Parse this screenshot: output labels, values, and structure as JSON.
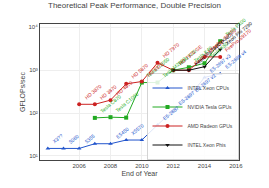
{
  "chart_data": {
    "type": "line",
    "title": "Theoretical Peak Performance, Double Precision",
    "xlabel": "End of Year",
    "ylabel": "GFLOPs/sec",
    "log": "y",
    "xlim": [
      2003.5,
      2016.2
    ],
    "xticks": [
      2006,
      2008,
      2010,
      2012,
      2014,
      2016
    ],
    "ylim": [
      8,
      12000
    ],
    "yticks": [
      {
        "value": 10,
        "label": "10¹"
      },
      {
        "value": 100,
        "label": "10²"
      },
      {
        "value": 1000,
        "label": "10³"
      },
      {
        "value": 10000,
        "label": "10⁴"
      }
    ],
    "grid": true,
    "legend": "lower right",
    "series": [
      {
        "name": "INTEL Xeon CPUs",
        "color": "#2255cc",
        "marker": "triangle-up",
        "x": [
          2004,
          2005,
          2006,
          2007,
          2008,
          2009,
          2010,
          2011,
          2012,
          2013,
          2014,
          2015
        ],
        "values": [
          14.9,
          14.9,
          14.9,
          19.2,
          19.2,
          23.4,
          23.4,
          52.8,
          115.2,
          235.2,
          680,
          825
        ],
        "annotations": [
          {
            "x": 2004,
            "y": 14.9,
            "text": "X3??"
          },
          {
            "x": 2005,
            "y": 14.9,
            "text": "5060"
          },
          {
            "x": 2006,
            "y": 14.9,
            "text": "5355"
          },
          {
            "x": 2008,
            "y": 19.2,
            "text": "E5450"
          },
          {
            "x": 2009,
            "y": 23.4,
            "text": "X5570"
          },
          {
            "x": 2011,
            "y": 52.8,
            "text": "E5-2687"
          },
          {
            "x": 2012,
            "y": 115.2,
            "text": "E5-2697"
          },
          {
            "x": 2013,
            "y": 235.2,
            "text": "E5-2697 v2"
          },
          {
            "x": 2014,
            "y": 680,
            "text": "E5-2697 v3"
          },
          {
            "x": 2015,
            "y": 825,
            "text": "E5-2699 v4"
          }
        ]
      },
      {
        "name": "NVIDIA Tesla GPUs",
        "color": "#22aa22",
        "marker": "square",
        "x": [
          2007,
          2008,
          2009,
          2010,
          2011,
          2012,
          2013,
          2014,
          2015
        ],
        "values": [
          77,
          80,
          78,
          515,
          515,
          1000,
          1170,
          1455,
          4752
        ],
        "annotations": [
          {
            "x": 2007,
            "y": 77,
            "text": "Tesla C870"
          },
          {
            "x": 2008,
            "y": 80,
            "text": "Tesla C1060"
          },
          {
            "x": 2010,
            "y": 515,
            "text": "Tesla C2050"
          },
          {
            "x": 2011,
            "y": 515,
            "text": "Tesla M2090"
          },
          {
            "x": 2012,
            "y": 1000,
            "text": "Tesla K20"
          },
          {
            "x": 2013,
            "y": 1170,
            "text": "Tesla K40"
          },
          {
            "x": 2014,
            "y": 1455,
            "text": "Tesla K80"
          },
          {
            "x": 2015,
            "y": 4752,
            "text": "Tesla P100"
          }
        ]
      },
      {
        "name": "AMD Radeon GPUs",
        "color": "#cc2222",
        "marker": "circle",
        "x": [
          2006,
          2007,
          2008,
          2009,
          2010,
          2011,
          2012,
          2013,
          2014,
          2015
        ],
        "values": [
          160,
          160,
          200,
          480,
          544,
          1488,
          1000,
          1000,
          2048,
          2048
        ],
        "annotations": [
          {
            "x": 2006,
            "y": 160,
            "text": "HD 3870"
          },
          {
            "x": 2007,
            "y": 160,
            "text": "HD 3870"
          },
          {
            "x": 2008,
            "y": 200,
            "text": "HD 4870"
          },
          {
            "x": 2009,
            "y": 480,
            "text": "HD 5870"
          },
          {
            "x": 2010,
            "y": 544,
            "text": "HD 6970"
          },
          {
            "x": 2011,
            "y": 1488,
            "text": "HD 7970"
          },
          {
            "x": 2012,
            "y": 1000,
            "text": "HD 7970 GE"
          },
          {
            "x": 2013,
            "y": 1000,
            "text": "FirePro S10000"
          },
          {
            "x": 2014,
            "y": 2048,
            "text": "FirePro S9150"
          },
          {
            "x": 2015,
            "y": 2048,
            "text": "FirePro S9170"
          }
        ]
      },
      {
        "name": "INTEL Xeon Phis",
        "color": "#111111",
        "marker": "triangle-down",
        "x": [
          2012,
          2013,
          2014,
          2015
        ],
        "values": [
          1000,
          1000,
          1208,
          3046
        ],
        "annotations": [
          {
            "x": 2013,
            "y": 1000,
            "text": "Xeon Phi 7120 (KNC)"
          },
          {
            "x": 2015,
            "y": 3046,
            "text": "Xeon Phi 7290"
          }
        ]
      }
    ]
  }
}
